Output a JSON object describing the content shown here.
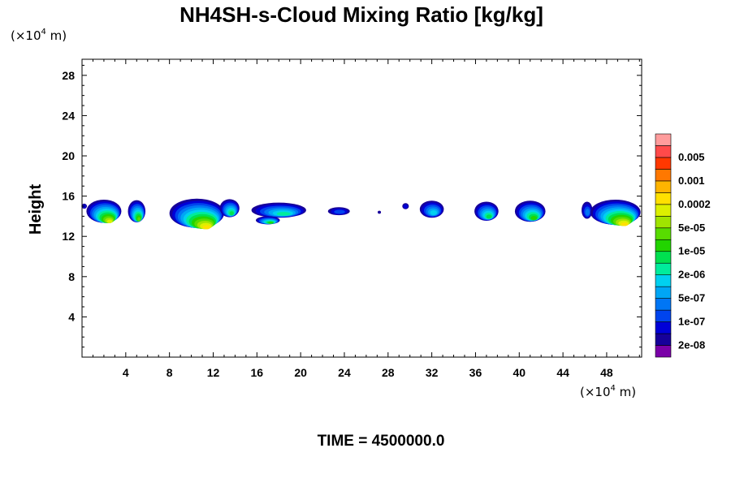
{
  "chart_data": {
    "type": "heatmap",
    "title": "NH4SH-s-Cloud Mixing Ratio [kg/kg]",
    "xlabel": "",
    "ylabel": "Height",
    "x_unit": {
      "prefix": "(×10",
      "exp": "4",
      "suffix": " m)"
    },
    "y_unit": {
      "prefix": "(×10",
      "exp": "4",
      "suffix": " m)"
    },
    "xlim": [
      0,
      51.2
    ],
    "ylim": [
      0,
      29.6
    ],
    "x_ticks": [
      4,
      8,
      12,
      16,
      20,
      24,
      28,
      32,
      36,
      40,
      44,
      48
    ],
    "y_ticks": [
      4,
      8,
      12,
      16,
      20,
      24,
      28
    ],
    "x_minor_step": 1,
    "y_minor_step": 1,
    "grid": false,
    "colorbar": {
      "levels": [
        "",
        "2e-08",
        "",
        "1e-07",
        "",
        "5e-07",
        "",
        "2e-06",
        "",
        "1e-05",
        "",
        "5e-05",
        "",
        "0.0002",
        "",
        "0.001",
        "",
        "0.005",
        ""
      ],
      "colors": [
        "#7a00a8",
        "#16009a",
        "#0000d8",
        "#0044ee",
        "#0076f5",
        "#00a6f5",
        "#00d0f0",
        "#00ec9c",
        "#00e050",
        "#22d400",
        "#58dc00",
        "#a0e400",
        "#dcf000",
        "#ffe000",
        "#ffb400",
        "#ff7800",
        "#ff3800",
        "#ff4a4a",
        "#ff9c9c"
      ],
      "placement": "right"
    },
    "clouds": [
      {
        "xc": 2.0,
        "yc": 14.5,
        "w": 3.2,
        "h": 2.3,
        "peak": 12
      },
      {
        "xc": 5.0,
        "yc": 14.5,
        "w": 1.6,
        "h": 2.2,
        "peak": 10
      },
      {
        "xc": 10.5,
        "yc": 14.3,
        "w": 5.0,
        "h": 2.9,
        "peak": 13
      },
      {
        "xc": 13.5,
        "yc": 14.8,
        "w": 1.8,
        "h": 1.8,
        "peak": 8
      },
      {
        "xc": 18.0,
        "yc": 14.6,
        "w": 5.0,
        "h": 1.5,
        "peak": 7
      },
      {
        "xc": 17.0,
        "yc": 13.6,
        "w": 2.2,
        "h": 0.8,
        "peak": 9
      },
      {
        "xc": 23.5,
        "yc": 14.5,
        "w": 2.0,
        "h": 0.8,
        "peak": 3
      },
      {
        "xc": 27.2,
        "yc": 14.4,
        "w": 0.3,
        "h": 0.3,
        "peak": 1
      },
      {
        "xc": 29.6,
        "yc": 15.0,
        "w": 0.6,
        "h": 0.6,
        "peak": 2
      },
      {
        "xc": 32.0,
        "yc": 14.7,
        "w": 2.2,
        "h": 1.7,
        "peak": 6
      },
      {
        "xc": 37.0,
        "yc": 14.5,
        "w": 2.2,
        "h": 1.9,
        "peak": 8
      },
      {
        "xc": 41.0,
        "yc": 14.5,
        "w": 2.8,
        "h": 2.1,
        "peak": 9
      },
      {
        "xc": 46.2,
        "yc": 14.6,
        "w": 1.0,
        "h": 1.7,
        "peak": 4
      },
      {
        "xc": 48.8,
        "yc": 14.4,
        "w": 4.6,
        "h": 2.5,
        "peak": 13
      },
      {
        "xc": 0.2,
        "yc": 15.0,
        "w": 0.5,
        "h": 0.5,
        "peak": 2
      }
    ]
  },
  "footer": {
    "time_label": "TIME = 4500000.0"
  }
}
